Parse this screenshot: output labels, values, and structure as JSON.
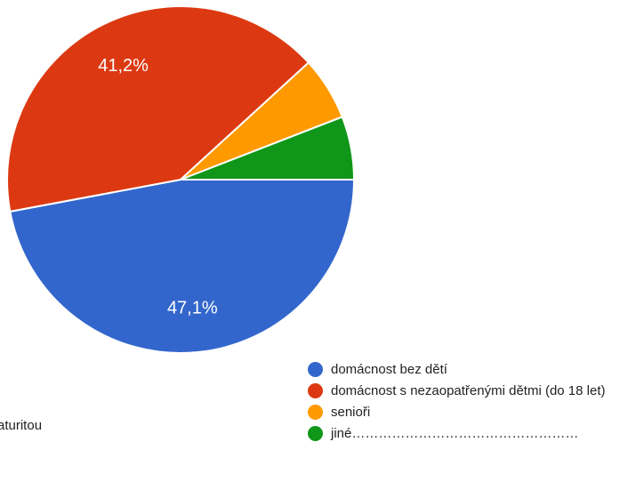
{
  "chart_data": {
    "type": "pie",
    "slices": [
      {
        "label": "domácnost bez dětí",
        "value": 47.1,
        "display": "47,1%",
        "color": "#3366cc"
      },
      {
        "label": "domácnost s nezaopatřenými dětmi (do 18 let)",
        "value": 41.2,
        "display": "41,2%",
        "color": "#dc3912"
      },
      {
        "label": "senioři",
        "value": 5.9,
        "display": "",
        "color": "#ff9900"
      },
      {
        "label": "jiné……………………………………………",
        "value": 5.9,
        "display": "",
        "color": "#109618"
      }
    ]
  },
  "left_fragment_text": "aturitou"
}
